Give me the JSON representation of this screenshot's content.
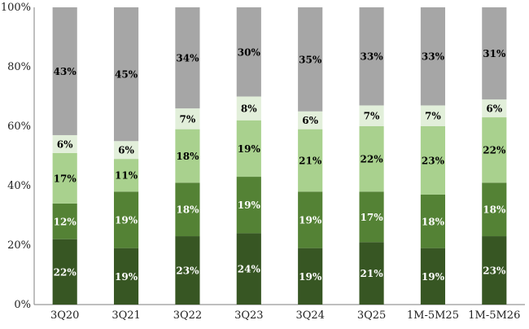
{
  "chart_data": {
    "type": "bar",
    "stacked": true,
    "percent_stacked": true,
    "categories": [
      "3Q20",
      "3Q21",
      "3Q22",
      "3Q23",
      "3Q24",
      "3Q25",
      "1M-5M25",
      "1M-5M26"
    ],
    "ylim": [
      0,
      100
    ],
    "y_ticks": [
      "0%",
      "20%",
      "40%",
      "60%",
      "80%",
      "100%"
    ],
    "grid": false,
    "legend": "none",
    "series": [
      {
        "values": [
          22,
          19,
          23,
          24,
          19,
          21,
          19,
          23
        ],
        "color": "#375623",
        "label_color": "#ffffff"
      },
      {
        "values": [
          12,
          19,
          18,
          19,
          19,
          17,
          18,
          18
        ],
        "color": "#548235",
        "label_color": "#ffffff"
      },
      {
        "values": [
          17,
          11,
          18,
          19,
          21,
          22,
          23,
          22
        ],
        "color": "#a9d18e",
        "label_color": "#000000"
      },
      {
        "values": [
          6,
          6,
          7,
          8,
          6,
          7,
          7,
          6
        ],
        "color": "#e2efda",
        "label_color": "#000000"
      },
      {
        "values": [
          43,
          45,
          34,
          30,
          35,
          33,
          33,
          31
        ],
        "color": "#a6a6a6",
        "label_color": "#000000"
      }
    ]
  }
}
